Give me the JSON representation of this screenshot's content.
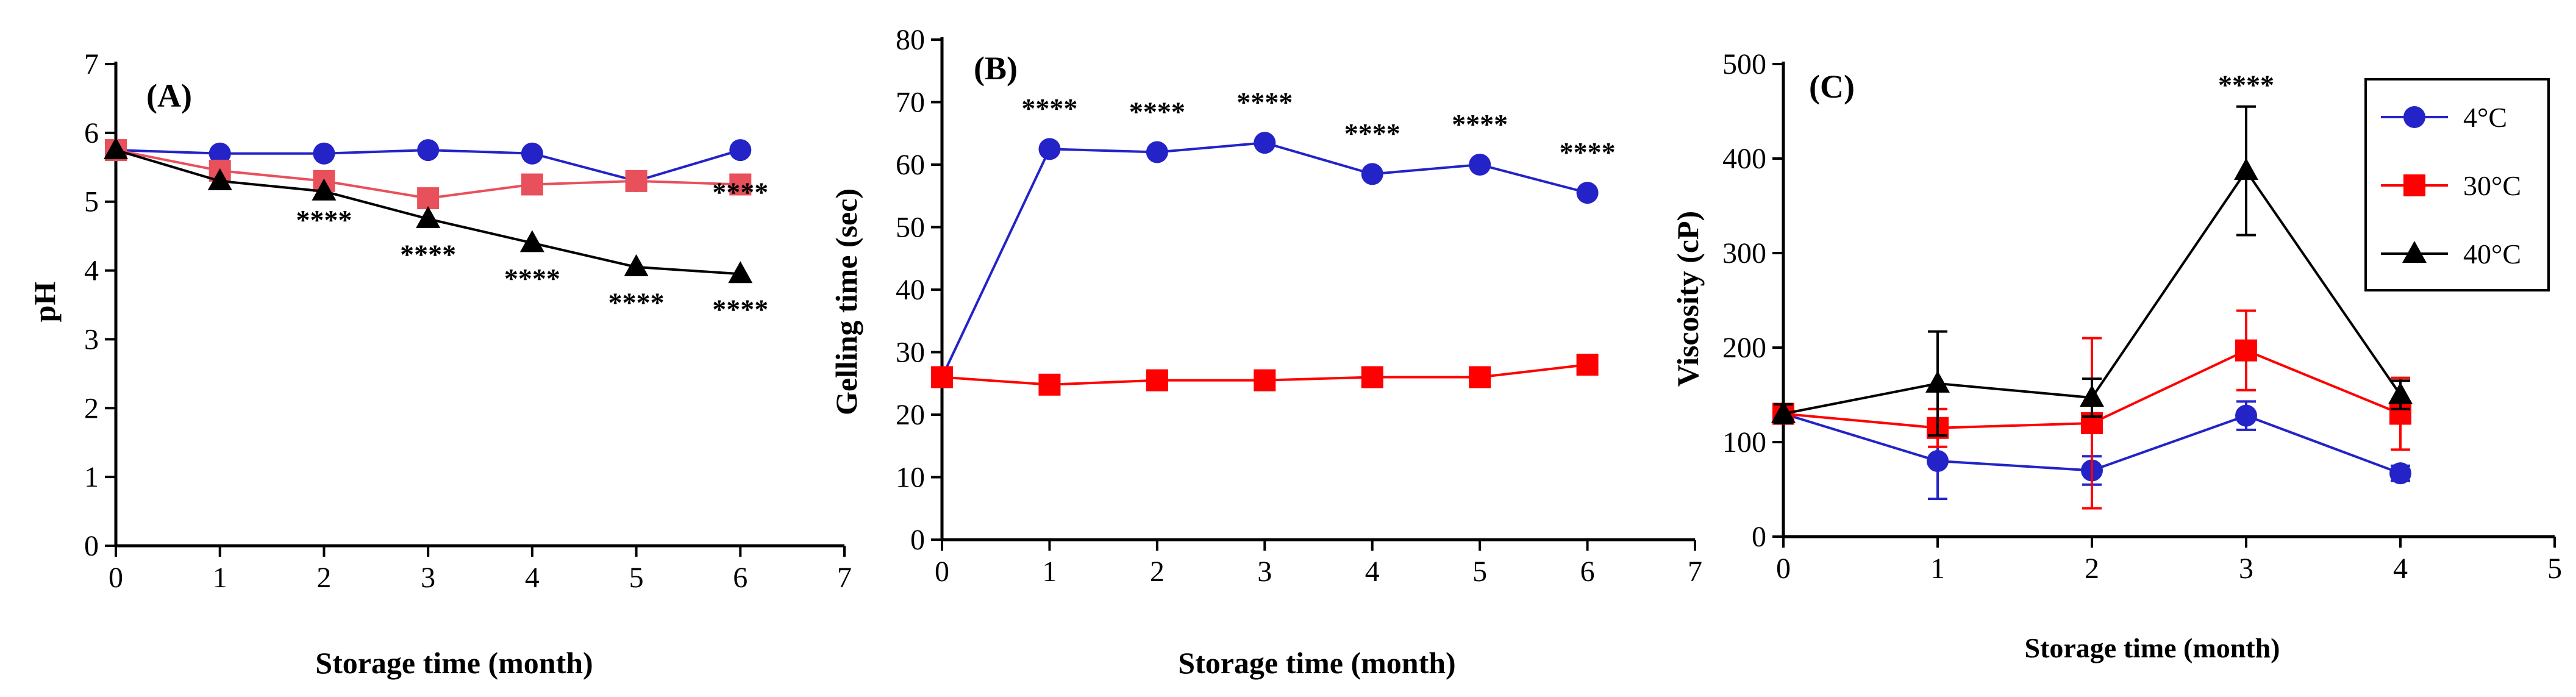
{
  "chart_data": [
    {
      "type": "line",
      "panel_label": "(A)",
      "xlabel": "Storage time (month)",
      "ylabel": "pH",
      "xlim": [
        0,
        7
      ],
      "ylim": [
        0,
        7
      ],
      "xticks": [
        "0",
        "1",
        "2",
        "3",
        "4",
        "5",
        "6",
        "7"
      ],
      "yticks": [
        "0",
        "1",
        "2",
        "3",
        "4",
        "5",
        "6",
        "7"
      ],
      "series": [
        {
          "name": "4°C",
          "color": "#2323c8",
          "marker": "circle",
          "x": [
            0,
            1,
            2,
            3,
            4,
            5,
            6
          ],
          "values": [
            5.75,
            5.7,
            5.7,
            5.75,
            5.7,
            5.3,
            5.75
          ]
        },
        {
          "name": "30°C",
          "color": "#e8505b",
          "marker": "square",
          "x": [
            0,
            1,
            2,
            3,
            4,
            5,
            6
          ],
          "values": [
            5.75,
            5.45,
            5.3,
            5.05,
            5.25,
            5.3,
            5.25
          ]
        },
        {
          "name": "40°C",
          "color": "#000000",
          "marker": "triangle",
          "x": [
            0,
            1,
            2,
            3,
            4,
            5,
            6
          ],
          "values": [
            5.75,
            5.3,
            5.15,
            4.75,
            4.4,
            4.05,
            3.95
          ]
        }
      ],
      "annotations": [
        {
          "x": 2,
          "y": 4.6,
          "text": "****"
        },
        {
          "x": 3,
          "y": 4.1,
          "text": "****"
        },
        {
          "x": 4,
          "y": 3.75,
          "text": "****"
        },
        {
          "x": 5,
          "y": 3.4,
          "text": "****"
        },
        {
          "x": 6,
          "y": 5.0,
          "text": "****"
        },
        {
          "x": 6,
          "y": 3.3,
          "text": "****"
        }
      ]
    },
    {
      "type": "line",
      "panel_label": "(B)",
      "xlabel": "Storage time (month)",
      "ylabel": "Gelling time (sec)",
      "xlim": [
        0,
        7
      ],
      "ylim": [
        0,
        80
      ],
      "xticks": [
        "0",
        "1",
        "2",
        "3",
        "4",
        "5",
        "6",
        "7"
      ],
      "yticks": [
        "0",
        "10",
        "20",
        "30",
        "40",
        "50",
        "60",
        "70",
        "80"
      ],
      "series": [
        {
          "name": "4°C",
          "color": "#2323c8",
          "marker": "circle",
          "x": [
            0,
            1,
            2,
            3,
            4,
            5,
            6
          ],
          "values": [
            26,
            62.5,
            62,
            63.5,
            58.5,
            60,
            55.5
          ]
        },
        {
          "name": "30°C",
          "color": "#ff0000",
          "marker": "square",
          "x": [
            0,
            1,
            2,
            3,
            4,
            5,
            6
          ],
          "values": [
            26,
            24.8,
            25.5,
            25.5,
            26,
            26,
            28
          ]
        }
      ],
      "annotations": [
        {
          "x": 1,
          "y": 67.5,
          "text": "****"
        },
        {
          "x": 2,
          "y": 67,
          "text": "****"
        },
        {
          "x": 3,
          "y": 68.5,
          "text": "****"
        },
        {
          "x": 4,
          "y": 63.5,
          "text": "****"
        },
        {
          "x": 5,
          "y": 65,
          "text": "****"
        },
        {
          "x": 6,
          "y": 60.5,
          "text": "****"
        }
      ]
    },
    {
      "type": "line",
      "panel_label": "(C)",
      "xlabel": "Storage time (month)",
      "ylabel": "Viscosity (cP)",
      "xlim": [
        0,
        5
      ],
      "ylim": [
        0,
        500
      ],
      "xticks": [
        "0",
        "1",
        "2",
        "3",
        "4",
        "5"
      ],
      "yticks": [
        "0",
        "100",
        "200",
        "300",
        "400",
        "500"
      ],
      "legend_position": "top-right",
      "series": [
        {
          "name": "4°C",
          "color": "#2323c8",
          "marker": "circle",
          "x": [
            0,
            1,
            2,
            3,
            4
          ],
          "values": [
            130,
            80,
            70,
            128,
            67
          ],
          "errors": [
            10,
            40,
            15,
            15,
            8
          ]
        },
        {
          "name": "30°C",
          "color": "#ff0000",
          "marker": "square",
          "x": [
            0,
            1,
            2,
            3,
            4
          ],
          "values": [
            130,
            115,
            120,
            197,
            130
          ],
          "errors": [
            10,
            20,
            90,
            42,
            38
          ]
        },
        {
          "name": "40°C",
          "color": "#000000",
          "marker": "triangle",
          "x": [
            0,
            1,
            2,
            3,
            4
          ],
          "values": [
            130,
            162,
            147,
            387,
            150
          ],
          "errors": [
            10,
            55,
            20,
            68,
            15
          ]
        }
      ],
      "annotations": [
        {
          "x": 3,
          "y": 468,
          "text": "****"
        }
      ],
      "legend": [
        "4°C",
        "30°C",
        "40°C"
      ]
    }
  ]
}
